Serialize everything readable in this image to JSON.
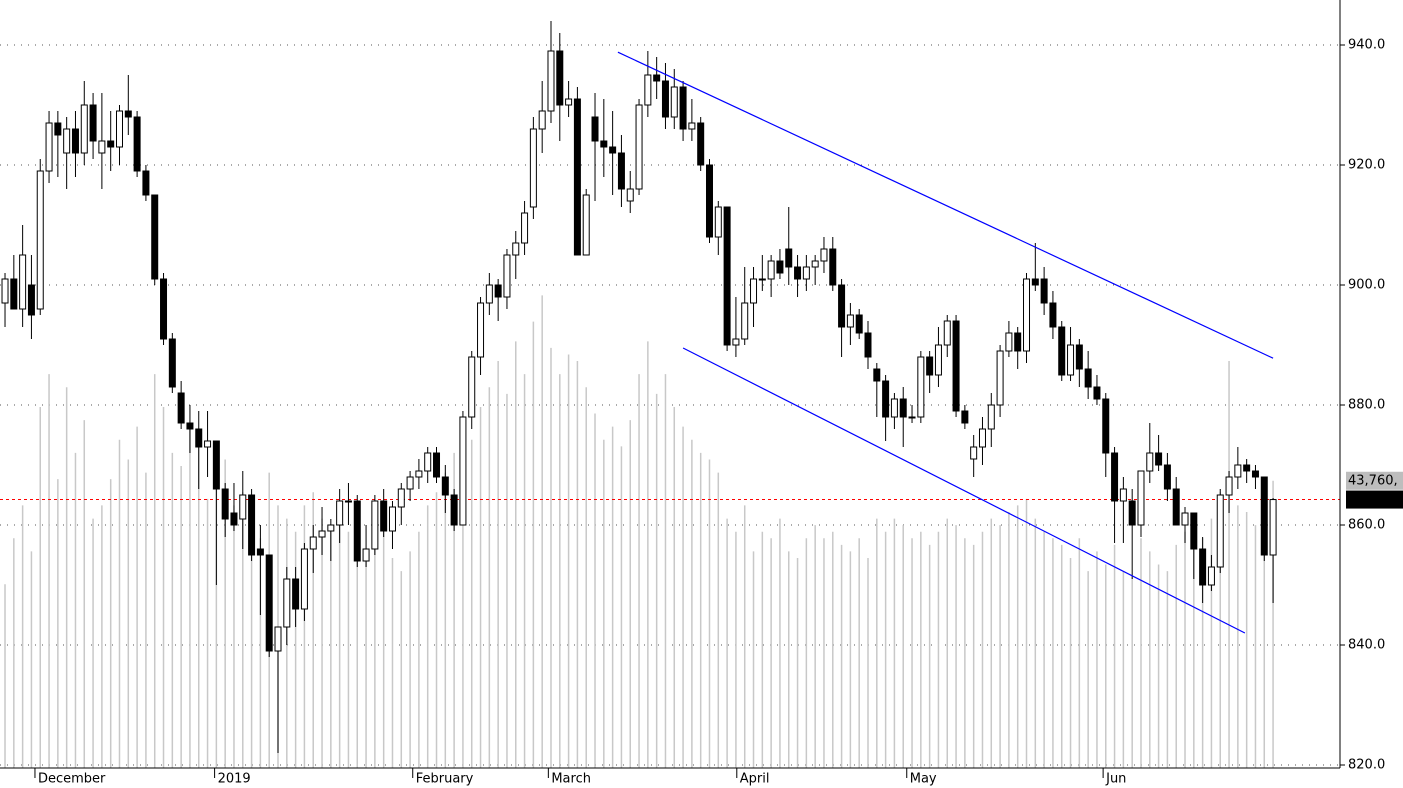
{
  "chart_data": {
    "type": "candlestick",
    "open": [
      897,
      901,
      896,
      900,
      896,
      919,
      927,
      922,
      926,
      922,
      930,
      922,
      924,
      923,
      929,
      928,
      919,
      915,
      901,
      891,
      882,
      877,
      876,
      873,
      874,
      866,
      862,
      861,
      865,
      856,
      855,
      839,
      843,
      851,
      846,
      856,
      858,
      859,
      860,
      864,
      864,
      854,
      856,
      864,
      859,
      863,
      866,
      868,
      869,
      872,
      868,
      865,
      860,
      878,
      888,
      897,
      900,
      898,
      905,
      907,
      913,
      926,
      929,
      939,
      930,
      931,
      905,
      928,
      924,
      923,
      922,
      914,
      916,
      930,
      935,
      934,
      928,
      933,
      926,
      927,
      920,
      908,
      913,
      890,
      891,
      897,
      901,
      901,
      904,
      906,
      903,
      901,
      903,
      904,
      906,
      900,
      893,
      895,
      892,
      886,
      884,
      878,
      881,
      878,
      878,
      888,
      885,
      890,
      894,
      879,
      871,
      873,
      876,
      880,
      889,
      892,
      889,
      901,
      901,
      897,
      893,
      885,
      890,
      886,
      883,
      881,
      872,
      864,
      864,
      860,
      869,
      872,
      870,
      866,
      860,
      862,
      856,
      850,
      853,
      865,
      868,
      870,
      869,
      868,
      855
    ],
    "high": [
      902,
      905,
      910,
      905,
      921,
      929,
      929,
      928,
      929,
      934,
      932,
      932,
      929,
      930,
      935,
      929,
      920,
      915,
      902,
      892,
      884,
      880,
      879,
      879,
      874,
      867,
      867,
      869,
      866,
      860,
      855,
      843,
      853,
      853,
      857,
      860,
      863,
      861,
      866,
      867,
      865,
      860,
      865,
      866,
      864,
      867,
      869,
      871,
      873,
      873,
      870,
      866,
      879,
      889,
      898,
      902,
      901,
      906,
      909,
      914,
      928,
      934,
      944,
      942,
      934,
      933,
      916,
      932,
      931,
      929,
      925,
      919,
      931,
      939,
      938,
      937,
      936,
      934,
      931,
      928,
      921,
      914,
      913,
      898,
      903,
      903,
      905,
      905,
      906,
      913,
      905,
      905,
      905,
      908,
      908,
      901,
      897,
      896,
      894,
      887,
      885,
      882,
      883,
      880,
      889,
      889,
      893,
      895,
      895,
      880,
      875,
      878,
      882,
      890,
      894,
      893,
      902,
      907,
      903,
      899,
      894,
      893,
      891,
      889,
      885,
      882,
      873,
      868,
      866,
      869,
      877,
      875,
      872,
      868,
      863,
      862,
      858,
      855,
      866,
      869,
      873,
      871,
      870,
      868,
      864.5
    ],
    "low": [
      893,
      897,
      893,
      891,
      895,
      917,
      918,
      916,
      918,
      920,
      921,
      916,
      919,
      920,
      925,
      918,
      914,
      900,
      890,
      882,
      876,
      872,
      866,
      868,
      850,
      858,
      859,
      856,
      854,
      845,
      838,
      822,
      840,
      843,
      844,
      852,
      855,
      854,
      857,
      860,
      853,
      853,
      855,
      858,
      856,
      860,
      864,
      866,
      867,
      867,
      862,
      859,
      860,
      876,
      885,
      895,
      894,
      896,
      901,
      905,
      911,
      922,
      927,
      924,
      928,
      905,
      905,
      914,
      918,
      915,
      913,
      912,
      915,
      928,
      931,
      926,
      926,
      924,
      924,
      919,
      907,
      905,
      889,
      888,
      890,
      893,
      899,
      898,
      901,
      900,
      898,
      899,
      900,
      902,
      899,
      888,
      890,
      891,
      886,
      878,
      874,
      876,
      873,
      877,
      877,
      882,
      883,
      888,
      878,
      876,
      868,
      870,
      873,
      878,
      888,
      886,
      887,
      899,
      895,
      891,
      884,
      884,
      883,
      881,
      880,
      868,
      857,
      857,
      851,
      858,
      867,
      869,
      864,
      860,
      857,
      851,
      847,
      849,
      852,
      862,
      866,
      867,
      866,
      854,
      847
    ],
    "close": [
      901,
      896,
      905,
      895,
      919,
      927,
      925,
      926,
      922,
      930,
      924,
      924,
      923,
      929,
      928,
      919,
      915,
      901,
      891,
      883,
      877,
      876,
      873,
      874,
      866,
      861,
      860,
      865,
      855,
      855,
      839,
      843,
      851,
      846,
      856,
      858,
      859,
      860,
      864,
      864,
      854,
      856,
      864,
      859,
      863,
      866,
      868,
      869,
      872,
      868,
      865,
      860,
      878,
      888,
      897,
      900,
      898,
      905,
      907,
      912,
      926,
      929,
      939,
      930,
      931,
      905,
      915,
      924,
      923,
      922,
      916,
      916,
      930,
      935,
      934,
      928,
      933,
      926,
      927,
      920,
      908,
      913,
      890,
      891,
      897,
      901,
      901,
      904,
      902,
      903,
      901,
      903,
      904,
      906,
      900,
      893,
      895,
      892,
      888,
      884,
      878,
      881,
      878,
      878,
      888,
      885,
      890,
      894,
      879,
      877,
      873,
      876,
      880,
      889,
      892,
      889,
      901,
      900,
      897,
      893,
      885,
      890,
      886,
      883,
      881,
      872,
      864,
      866,
      860,
      869,
      872,
      870,
      866,
      860,
      862,
      856,
      850,
      853,
      865,
      868,
      870,
      869,
      868,
      855,
      864.24
    ],
    "volume": [
      28000,
      35000,
      40000,
      33000,
      55000,
      60000,
      44000,
      58000,
      48000,
      53000,
      38000,
      40000,
      44000,
      50000,
      47000,
      52000,
      45000,
      60000,
      55000,
      48000,
      46000,
      52000,
      50000,
      41000,
      45000,
      47000,
      40000,
      42000,
      38000,
      35000,
      45000,
      40000,
      38000,
      36000,
      40000,
      42000,
      38000,
      37000,
      39000,
      36000,
      35000,
      33000,
      34000,
      37000,
      32000,
      30000,
      33000,
      36000,
      40000,
      42000,
      45000,
      48000,
      52000,
      50000,
      55000,
      58000,
      62000,
      57000,
      65000,
      60000,
      68000,
      72000,
      64000,
      60000,
      63000,
      62000,
      58000,
      54000,
      50000,
      52000,
      49000,
      53000,
      60000,
      65000,
      57000,
      60000,
      55000,
      52000,
      50000,
      48000,
      47000,
      45000,
      38000,
      36000,
      40000,
      33000,
      36000,
      35000,
      38000,
      33000,
      32000,
      35000,
      37000,
      35000,
      36000,
      34000,
      33000,
      35000,
      32000,
      38000,
      36000,
      38000,
      37000,
      35000,
      36000,
      34000,
      36000,
      38000,
      37000,
      35000,
      34000,
      36000,
      38000,
      37000,
      39000,
      40000,
      41000,
      38000,
      36000,
      35000,
      34000,
      32000,
      35000,
      30000,
      33000,
      31000,
      34000,
      30000,
      29000,
      35000,
      33000,
      31000,
      30000,
      34000,
      36000,
      37000,
      35000,
      38000,
      42000,
      62000,
      40000,
      39000,
      37000,
      35000,
      43760
    ],
    "last_close_label": "864.24",
    "last_volume_label": "43,760,",
    "up_color": "#ffffff",
    "down_color": "#000000",
    "volume_color": "#c8c8c8",
    "trendline_color": "#0000ff",
    "last_line_color": "#ff0000",
    "xlim": [
      -0.57,
      151.6
    ],
    "xticks": [
      {
        "value": 3.4,
        "label": "December"
      },
      {
        "value": 23.8,
        "label": "2019"
      },
      {
        "value": 46.3,
        "label": "February"
      },
      {
        "value": 61.7,
        "label": "March"
      },
      {
        "value": 83.1,
        "label": "April"
      },
      {
        "value": 102.4,
        "label": "May"
      },
      {
        "value": 124.7,
        "label": "Jun"
      }
    ],
    "ylim": [
      819.5,
      947.5
    ],
    "yticks": [
      {
        "value": 820,
        "label": "820.0"
      },
      {
        "value": 840,
        "label": "840.0"
      },
      {
        "value": 860,
        "label": "860.0"
      },
      {
        "value": 880,
        "label": "880.0"
      },
      {
        "value": 900,
        "label": "900.0"
      },
      {
        "value": 920,
        "label": "920.0"
      },
      {
        "value": 940,
        "label": "940.0"
      }
    ],
    "y2lim": [
      0,
      117000
    ],
    "grid": true,
    "trendlines": [
      {
        "x": [
          69.6,
          144
        ],
        "y": [
          938.8,
          887.8
        ]
      },
      {
        "x": [
          77,
          140.8
        ],
        "y": [
          889.5,
          842
        ]
      }
    ]
  }
}
